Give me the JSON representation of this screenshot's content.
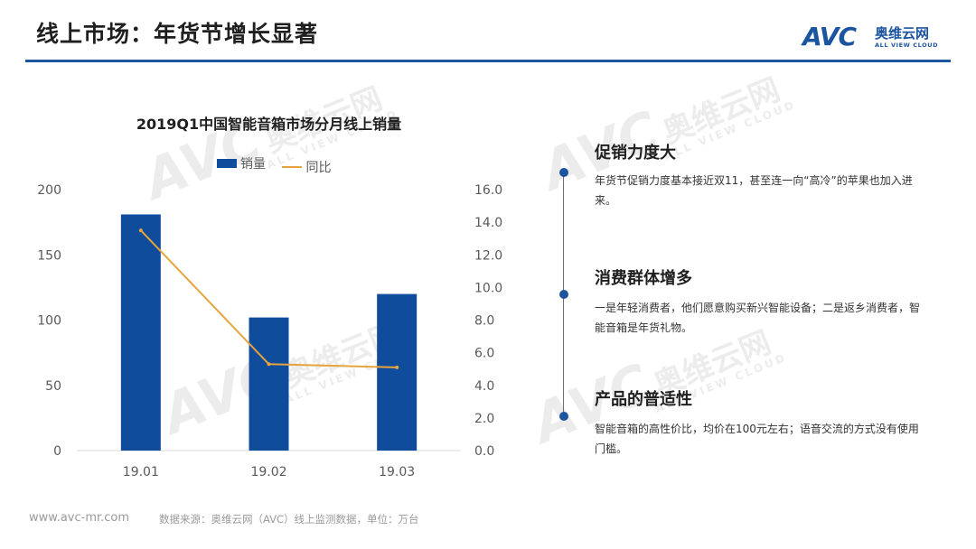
{
  "header": {
    "title": "线上市场：年货节增长显著",
    "logo_mark": "AVC",
    "logo_cn": "奥维云网",
    "logo_en": "ALL VIEW CLOUD",
    "rule_color": "#1c54a0"
  },
  "watermark": {
    "mark": "AVC",
    "cn": "奥维云网",
    "en": "ALL VIEW CLOUD"
  },
  "chart_data": {
    "type": "bar",
    "title": "2019Q1中国智能音箱市场分月线上销量",
    "categories": [
      "19.01",
      "19.02",
      "19.03"
    ],
    "series": [
      {
        "name": "销量",
        "type": "bar",
        "axis": "left",
        "color": "#0f4c9c",
        "values": [
          181,
          102,
          120
        ]
      },
      {
        "name": "同比",
        "type": "line",
        "axis": "right",
        "color": "#e6a33e",
        "values": [
          13.5,
          5.3,
          5.1
        ]
      }
    ],
    "ylim_left": [
      0,
      200
    ],
    "yticks_left": [
      "200",
      "150",
      "100",
      "50",
      "0"
    ],
    "ylim_right": [
      0,
      16
    ],
    "yticks_right": [
      "16.0",
      "14.0",
      "12.0",
      "10.0",
      "8.0",
      "6.0",
      "4.0",
      "2.0",
      "0.0"
    ],
    "legend_position": "top",
    "grid": false
  },
  "points": [
    {
      "heading": "促销力度大",
      "body": "年货节促销力度基本接近双11，甚至连一向“高冷”的苹果也加入进来。"
    },
    {
      "heading": "消费群体增多",
      "body": "一是年轻消费者，他们愿意购买新兴智能设备；二是返乡消费者，智能音箱是年货礼物。"
    },
    {
      "heading": "产品的普适性",
      "body": "智能音箱的高性价比，均价在100元左右；语音交流的方式没有使用门槛。"
    }
  ],
  "footer": {
    "url": "www.avc-mr.com",
    "source": "数据来源：奥维云网（AVC）线上监测数据，单位：万台"
  }
}
